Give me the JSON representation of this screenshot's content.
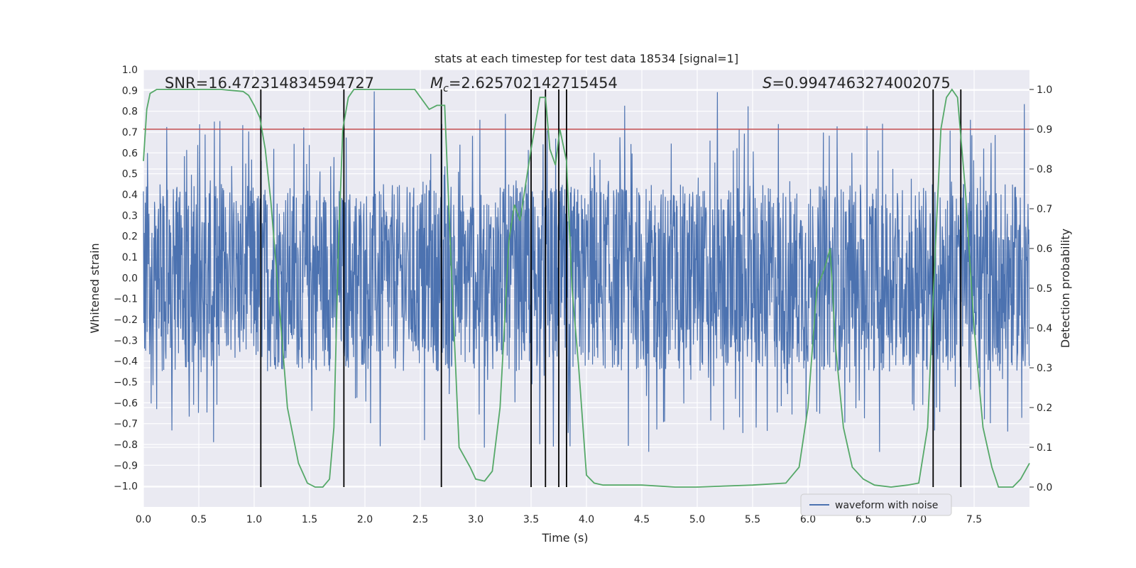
{
  "chart_data": {
    "type": "line",
    "title": "stats at each timestep for test data 18534 [signal=1]",
    "xlabel": "Time (s)",
    "ylabel_left": "Whitened strain",
    "ylabel_right": "Detection probability",
    "xlim": [
      0.0,
      8.0
    ],
    "ylim_left": [
      -1.1,
      1.0
    ],
    "ylim_right": [
      -0.05,
      1.05
    ],
    "x_ticks": [
      "0.0",
      "0.5",
      "1.0",
      "1.5",
      "2.0",
      "2.5",
      "3.0",
      "3.5",
      "4.0",
      "4.5",
      "5.0",
      "5.5",
      "6.0",
      "6.5",
      "7.0",
      "7.5"
    ],
    "y_left_ticks": [
      "1.0",
      "0.9",
      "0.8",
      "0.7",
      "0.6",
      "0.5",
      "0.4",
      "0.3",
      "0.2",
      "0.1",
      "0.0",
      "−0.1",
      "−0.2",
      "−0.3",
      "−0.4",
      "−0.5",
      "−0.6",
      "−0.7",
      "−0.8",
      "−0.9",
      "−1.0"
    ],
    "y_right_ticks": [
      "1.0",
      "0.9",
      "0.8",
      "0.7",
      "0.6",
      "0.5",
      "0.4",
      "0.3",
      "0.2",
      "0.1",
      "0.0"
    ],
    "annotations": {
      "snr": "SNR=16.472314834594727",
      "mc_symbol": "M",
      "mc_sub": "c",
      "mc_value": "=2.625702142715454",
      "s_symbol": "S",
      "s_value": "=0.9947463274002075"
    },
    "threshold_right": 0.9,
    "threshold_color": "#c44e52",
    "vertical_lines_x": [
      1.06,
      1.81,
      2.69,
      3.5,
      3.63,
      3.75,
      3.82,
      7.13,
      7.38
    ],
    "series": [
      {
        "name": "waveform with noise",
        "color": "#4c72b0",
        "axis": "left",
        "description": "dense noisy whitened strain, core band approx ±0.35, peaks to ±0.9",
        "envelope_upper_typical": 0.45,
        "envelope_lower_typical": -0.45,
        "peak_max": 0.9,
        "peak_min": -0.85
      },
      {
        "color": "#55a868",
        "axis": "right",
        "x": [
          0.0,
          0.03,
          0.06,
          0.12,
          0.2,
          0.3,
          0.5,
          0.7,
          0.9,
          0.95,
          1.0,
          1.05,
          1.1,
          1.15,
          1.2,
          1.3,
          1.4,
          1.48,
          1.55,
          1.62,
          1.68,
          1.72,
          1.76,
          1.8,
          1.85,
          1.9,
          2.0,
          2.2,
          2.45,
          2.58,
          2.65,
          2.72,
          2.78,
          2.85,
          2.95,
          3.0,
          3.08,
          3.15,
          3.22,
          3.3,
          3.35,
          3.4,
          3.5,
          3.58,
          3.63,
          3.67,
          3.72,
          3.76,
          3.82,
          3.87,
          3.93,
          4.0,
          4.07,
          4.15,
          4.3,
          4.5,
          4.8,
          5.0,
          5.5,
          5.8,
          5.92,
          6.0,
          6.08,
          6.15,
          6.2,
          6.25,
          6.32,
          6.4,
          6.5,
          6.6,
          6.75,
          6.9,
          7.0,
          7.08,
          7.15,
          7.2,
          7.25,
          7.3,
          7.35,
          7.42,
          7.5,
          7.58,
          7.66,
          7.72,
          7.78,
          7.85,
          7.92,
          8.0
        ],
        "y": [
          0.82,
          0.95,
          0.99,
          1.0,
          1.0,
          1.0,
          1.0,
          1.0,
          0.995,
          0.985,
          0.96,
          0.93,
          0.85,
          0.72,
          0.55,
          0.2,
          0.06,
          0.01,
          0.0,
          0.0,
          0.02,
          0.15,
          0.6,
          0.9,
          0.98,
          1.0,
          1.0,
          1.0,
          1.0,
          0.95,
          0.96,
          0.96,
          0.55,
          0.1,
          0.05,
          0.02,
          0.015,
          0.04,
          0.2,
          0.62,
          0.71,
          0.67,
          0.85,
          0.98,
          0.98,
          0.85,
          0.81,
          0.9,
          0.82,
          0.5,
          0.3,
          0.03,
          0.01,
          0.005,
          0.005,
          0.005,
          0.0,
          0.0,
          0.005,
          0.01,
          0.05,
          0.2,
          0.5,
          0.55,
          0.6,
          0.35,
          0.15,
          0.05,
          0.02,
          0.005,
          0.0,
          0.005,
          0.01,
          0.15,
          0.6,
          0.9,
          0.98,
          1.0,
          0.98,
          0.75,
          0.4,
          0.15,
          0.05,
          0.0,
          0.0,
          0.0,
          0.02,
          0.06
        ]
      }
    ],
    "legend_position": "lower-right",
    "grid": true
  }
}
